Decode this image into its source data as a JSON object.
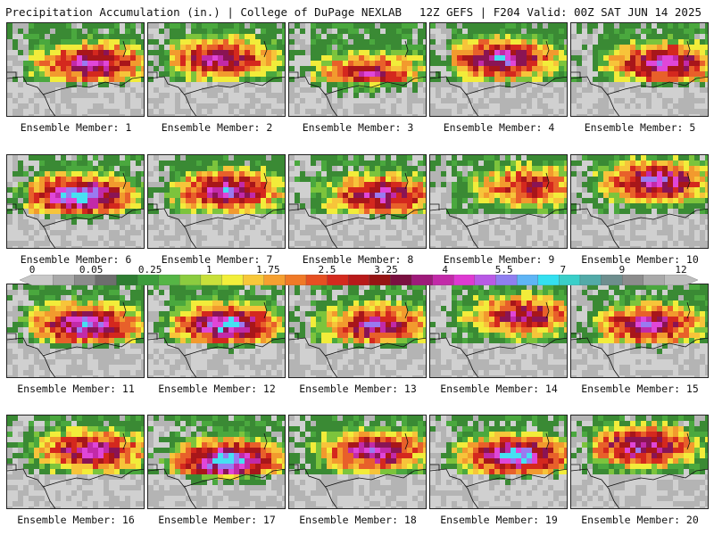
{
  "header": {
    "left": "Precipitation Accumulation (in.) | College of DuPage NEXLAB",
    "right": "12Z GEFS | F204 Valid: 00Z SAT JUN 14 2025"
  },
  "panel_label_prefix": "Ensemble Member:",
  "members": [
    {
      "n": "1",
      "intensity": 0.55,
      "seed": 11,
      "blob_x": 0.6,
      "blob_y": 0.4
    },
    {
      "n": "2",
      "intensity": 0.5,
      "seed": 23,
      "blob_x": 0.5,
      "blob_y": 0.35
    },
    {
      "n": "3",
      "intensity": 0.35,
      "seed": 37,
      "blob_x": 0.55,
      "blob_y": 0.5
    },
    {
      "n": "4",
      "intensity": 0.6,
      "seed": 41,
      "blob_x": 0.5,
      "blob_y": 0.35
    },
    {
      "n": "5",
      "intensity": 0.55,
      "seed": 53,
      "blob_x": 0.65,
      "blob_y": 0.4
    },
    {
      "n": "6",
      "intensity": 0.8,
      "seed": 67,
      "blob_x": 0.5,
      "blob_y": 0.4
    },
    {
      "n": "7",
      "intensity": 0.6,
      "seed": 71,
      "blob_x": 0.55,
      "blob_y": 0.35
    },
    {
      "n": "8",
      "intensity": 0.5,
      "seed": 83,
      "blob_x": 0.65,
      "blob_y": 0.4
    },
    {
      "n": "9",
      "intensity": 0.3,
      "seed": 97,
      "blob_x": 0.7,
      "blob_y": 0.3
    },
    {
      "n": "10",
      "intensity": 0.6,
      "seed": 101,
      "blob_x": 0.6,
      "blob_y": 0.25
    },
    {
      "n": "11",
      "intensity": 0.65,
      "seed": 113,
      "blob_x": 0.55,
      "blob_y": 0.4
    },
    {
      "n": "12",
      "intensity": 0.7,
      "seed": 127,
      "blob_x": 0.55,
      "blob_y": 0.4
    },
    {
      "n": "13",
      "intensity": 0.45,
      "seed": 131,
      "blob_x": 0.6,
      "blob_y": 0.4
    },
    {
      "n": "14",
      "intensity": 0.4,
      "seed": 149,
      "blob_x": 0.65,
      "blob_y": 0.3
    },
    {
      "n": "15",
      "intensity": 0.5,
      "seed": 151,
      "blob_x": 0.55,
      "blob_y": 0.4
    },
    {
      "n": "16",
      "intensity": 0.5,
      "seed": 163,
      "blob_x": 0.6,
      "blob_y": 0.35
    },
    {
      "n": "17",
      "intensity": 0.8,
      "seed": 173,
      "blob_x": 0.55,
      "blob_y": 0.45
    },
    {
      "n": "18",
      "intensity": 0.55,
      "seed": 181,
      "blob_x": 0.6,
      "blob_y": 0.35
    },
    {
      "n": "19",
      "intensity": 0.75,
      "seed": 191,
      "blob_x": 0.6,
      "blob_y": 0.4
    },
    {
      "n": "20",
      "intensity": 0.55,
      "seed": 199,
      "blob_x": 0.5,
      "blob_y": 0.3
    }
  ],
  "colorbar": {
    "labels": [
      "0",
      "0.05",
      "0.25",
      "1",
      "1.75",
      "2.5",
      "3.25",
      "4",
      "5.5",
      "7",
      "9",
      "12"
    ],
    "colors": [
      "#c8c8c8",
      "#a9a9a9",
      "#8c8c8c",
      "#6e6e6e",
      "#2e7d32",
      "#3c9c3c",
      "#55b545",
      "#8bcc3f",
      "#c8e03a",
      "#f2ef3a",
      "#f7c83a",
      "#f5a030",
      "#f07a28",
      "#e65022",
      "#d42a1e",
      "#b81a1a",
      "#961414",
      "#7a1040",
      "#9e1a7a",
      "#c22aa8",
      "#de3ad2",
      "#b85ae6",
      "#8f7ff0",
      "#5fb5f5",
      "#34e0f0",
      "#3acfc9",
      "#52aaa8",
      "#6e8e8e",
      "#8c8c8c",
      "#a9a9a9",
      "#bdbdbd"
    ]
  }
}
